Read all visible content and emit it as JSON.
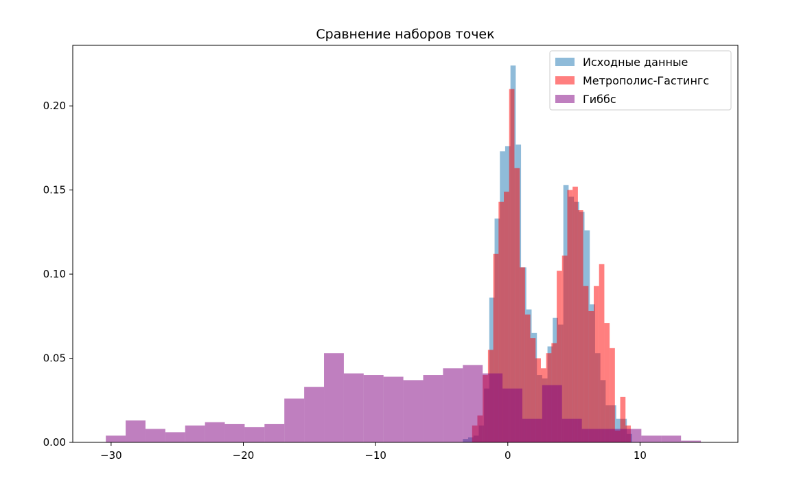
{
  "chart_data": {
    "type": "histogram",
    "title": "Сравнение наборов точек",
    "xlabel": "",
    "ylabel": "",
    "xlim": [
      -32.9,
      17.4
    ],
    "ylim": [
      0,
      0.236
    ],
    "xticks": [
      -30,
      -20,
      -10,
      0,
      10
    ],
    "xtick_labels": [
      "−30",
      "−20",
      "−10",
      "0",
      "10"
    ],
    "yticks": [
      0.0,
      0.05,
      0.1,
      0.15,
      0.2
    ],
    "ytick_labels": [
      "0.00",
      "0.05",
      "0.10",
      "0.15",
      "0.20"
    ],
    "grid": false,
    "legend_position": "top-right",
    "series": [
      {
        "name": "Исходные данные",
        "color": "#1f77b4",
        "alpha": 0.5,
        "bins": [
          [
            -3.4,
            -3.0,
            0.002
          ],
          [
            -3.0,
            -2.6,
            0.003
          ],
          [
            -2.6,
            -2.2,
            0.004
          ],
          [
            -2.2,
            -1.8,
            0.01
          ],
          [
            -1.8,
            -1.4,
            0.032
          ],
          [
            -1.4,
            -1.0,
            0.086
          ],
          [
            -1.0,
            -0.6,
            0.133
          ],
          [
            -0.6,
            -0.2,
            0.173
          ],
          [
            -0.2,
            0.2,
            0.176
          ],
          [
            0.2,
            0.6,
            0.224
          ],
          [
            0.6,
            1.0,
            0.177
          ],
          [
            1.0,
            1.4,
            0.104
          ],
          [
            1.4,
            1.8,
            0.079
          ],
          [
            1.8,
            2.2,
            0.065
          ],
          [
            2.2,
            2.6,
            0.04
          ],
          [
            2.6,
            3.0,
            0.038
          ],
          [
            3.0,
            3.4,
            0.057
          ],
          [
            3.4,
            3.8,
            0.074
          ],
          [
            3.8,
            4.2,
            0.07
          ],
          [
            4.2,
            4.6,
            0.153
          ],
          [
            4.6,
            5.0,
            0.146
          ],
          [
            5.0,
            5.4,
            0.143
          ],
          [
            5.4,
            5.8,
            0.137
          ],
          [
            5.8,
            6.2,
            0.126
          ],
          [
            6.2,
            6.6,
            0.082
          ],
          [
            6.6,
            7.0,
            0.053
          ],
          [
            7.0,
            7.4,
            0.037
          ],
          [
            7.4,
            7.8,
            0.022
          ],
          [
            7.8,
            8.2,
            0.022
          ],
          [
            8.2,
            8.6,
            0.014
          ],
          [
            8.6,
            9.0,
            0.014
          ],
          [
            9.0,
            9.4,
            0.005
          ]
        ]
      },
      {
        "name": "Метрополис-Гастингс",
        "color": "#ff0000",
        "alpha": 0.5,
        "bins": [
          [
            -2.7,
            -2.3,
            0.01
          ],
          [
            -2.3,
            -1.9,
            0.016
          ],
          [
            -1.9,
            -1.5,
            0.04
          ],
          [
            -1.5,
            -1.1,
            0.055
          ],
          [
            -1.1,
            -0.7,
            0.112
          ],
          [
            -0.7,
            -0.3,
            0.143
          ],
          [
            -0.3,
            0.1,
            0.149
          ],
          [
            0.1,
            0.5,
            0.21
          ],
          [
            0.5,
            0.9,
            0.163
          ],
          [
            0.9,
            1.3,
            0.104
          ],
          [
            1.3,
            1.7,
            0.076
          ],
          [
            1.7,
            2.1,
            0.062
          ],
          [
            2.1,
            2.5,
            0.05
          ],
          [
            2.5,
            2.9,
            0.044
          ],
          [
            2.9,
            3.3,
            0.053
          ],
          [
            3.3,
            3.7,
            0.059
          ],
          [
            3.7,
            4.1,
            0.102
          ],
          [
            4.1,
            4.5,
            0.111
          ],
          [
            4.5,
            4.9,
            0.15
          ],
          [
            4.9,
            5.3,
            0.152
          ],
          [
            5.3,
            5.7,
            0.138
          ],
          [
            5.7,
            6.1,
            0.093
          ],
          [
            6.1,
            6.5,
            0.078
          ],
          [
            6.5,
            6.9,
            0.093
          ],
          [
            6.9,
            7.3,
            0.106
          ],
          [
            7.3,
            7.7,
            0.071
          ],
          [
            7.7,
            8.1,
            0.056
          ],
          [
            8.1,
            8.5,
            0.007
          ],
          [
            8.5,
            8.9,
            0.027
          ],
          [
            8.9,
            9.3,
            0.01
          ]
        ]
      },
      {
        "name": "Гиббс",
        "color": "#800080",
        "alpha": 0.5,
        "bins": [
          [
            -30.4,
            -28.9,
            0.004
          ],
          [
            -28.9,
            -27.4,
            0.013
          ],
          [
            -27.4,
            -25.9,
            0.008
          ],
          [
            -25.9,
            -24.4,
            0.006
          ],
          [
            -24.4,
            -22.9,
            0.01
          ],
          [
            -22.9,
            -21.4,
            0.012
          ],
          [
            -21.4,
            -19.9,
            0.011
          ],
          [
            -19.9,
            -18.4,
            0.009
          ],
          [
            -18.4,
            -16.9,
            0.011
          ],
          [
            -16.9,
            -15.4,
            0.026
          ],
          [
            -15.4,
            -13.9,
            0.033
          ],
          [
            -13.9,
            -12.4,
            0.053
          ],
          [
            -12.4,
            -10.9,
            0.041
          ],
          [
            -10.9,
            -9.4,
            0.04
          ],
          [
            -9.4,
            -7.9,
            0.039
          ],
          [
            -7.9,
            -6.4,
            0.037
          ],
          [
            -6.4,
            -4.9,
            0.04
          ],
          [
            -4.9,
            -3.4,
            0.044
          ],
          [
            -3.4,
            -1.9,
            0.046
          ],
          [
            -1.9,
            -0.4,
            0.041
          ],
          [
            -0.4,
            1.1,
            0.032
          ],
          [
            1.1,
            2.6,
            0.014
          ],
          [
            2.6,
            4.1,
            0.034
          ],
          [
            4.1,
            5.6,
            0.014
          ],
          [
            5.6,
            7.1,
            0.008
          ],
          [
            7.1,
            8.6,
            0.008
          ],
          [
            8.6,
            10.1,
            0.008
          ],
          [
            10.1,
            11.6,
            0.004
          ],
          [
            11.6,
            13.1,
            0.004
          ],
          [
            13.1,
            14.6,
            0.001
          ]
        ]
      }
    ]
  }
}
